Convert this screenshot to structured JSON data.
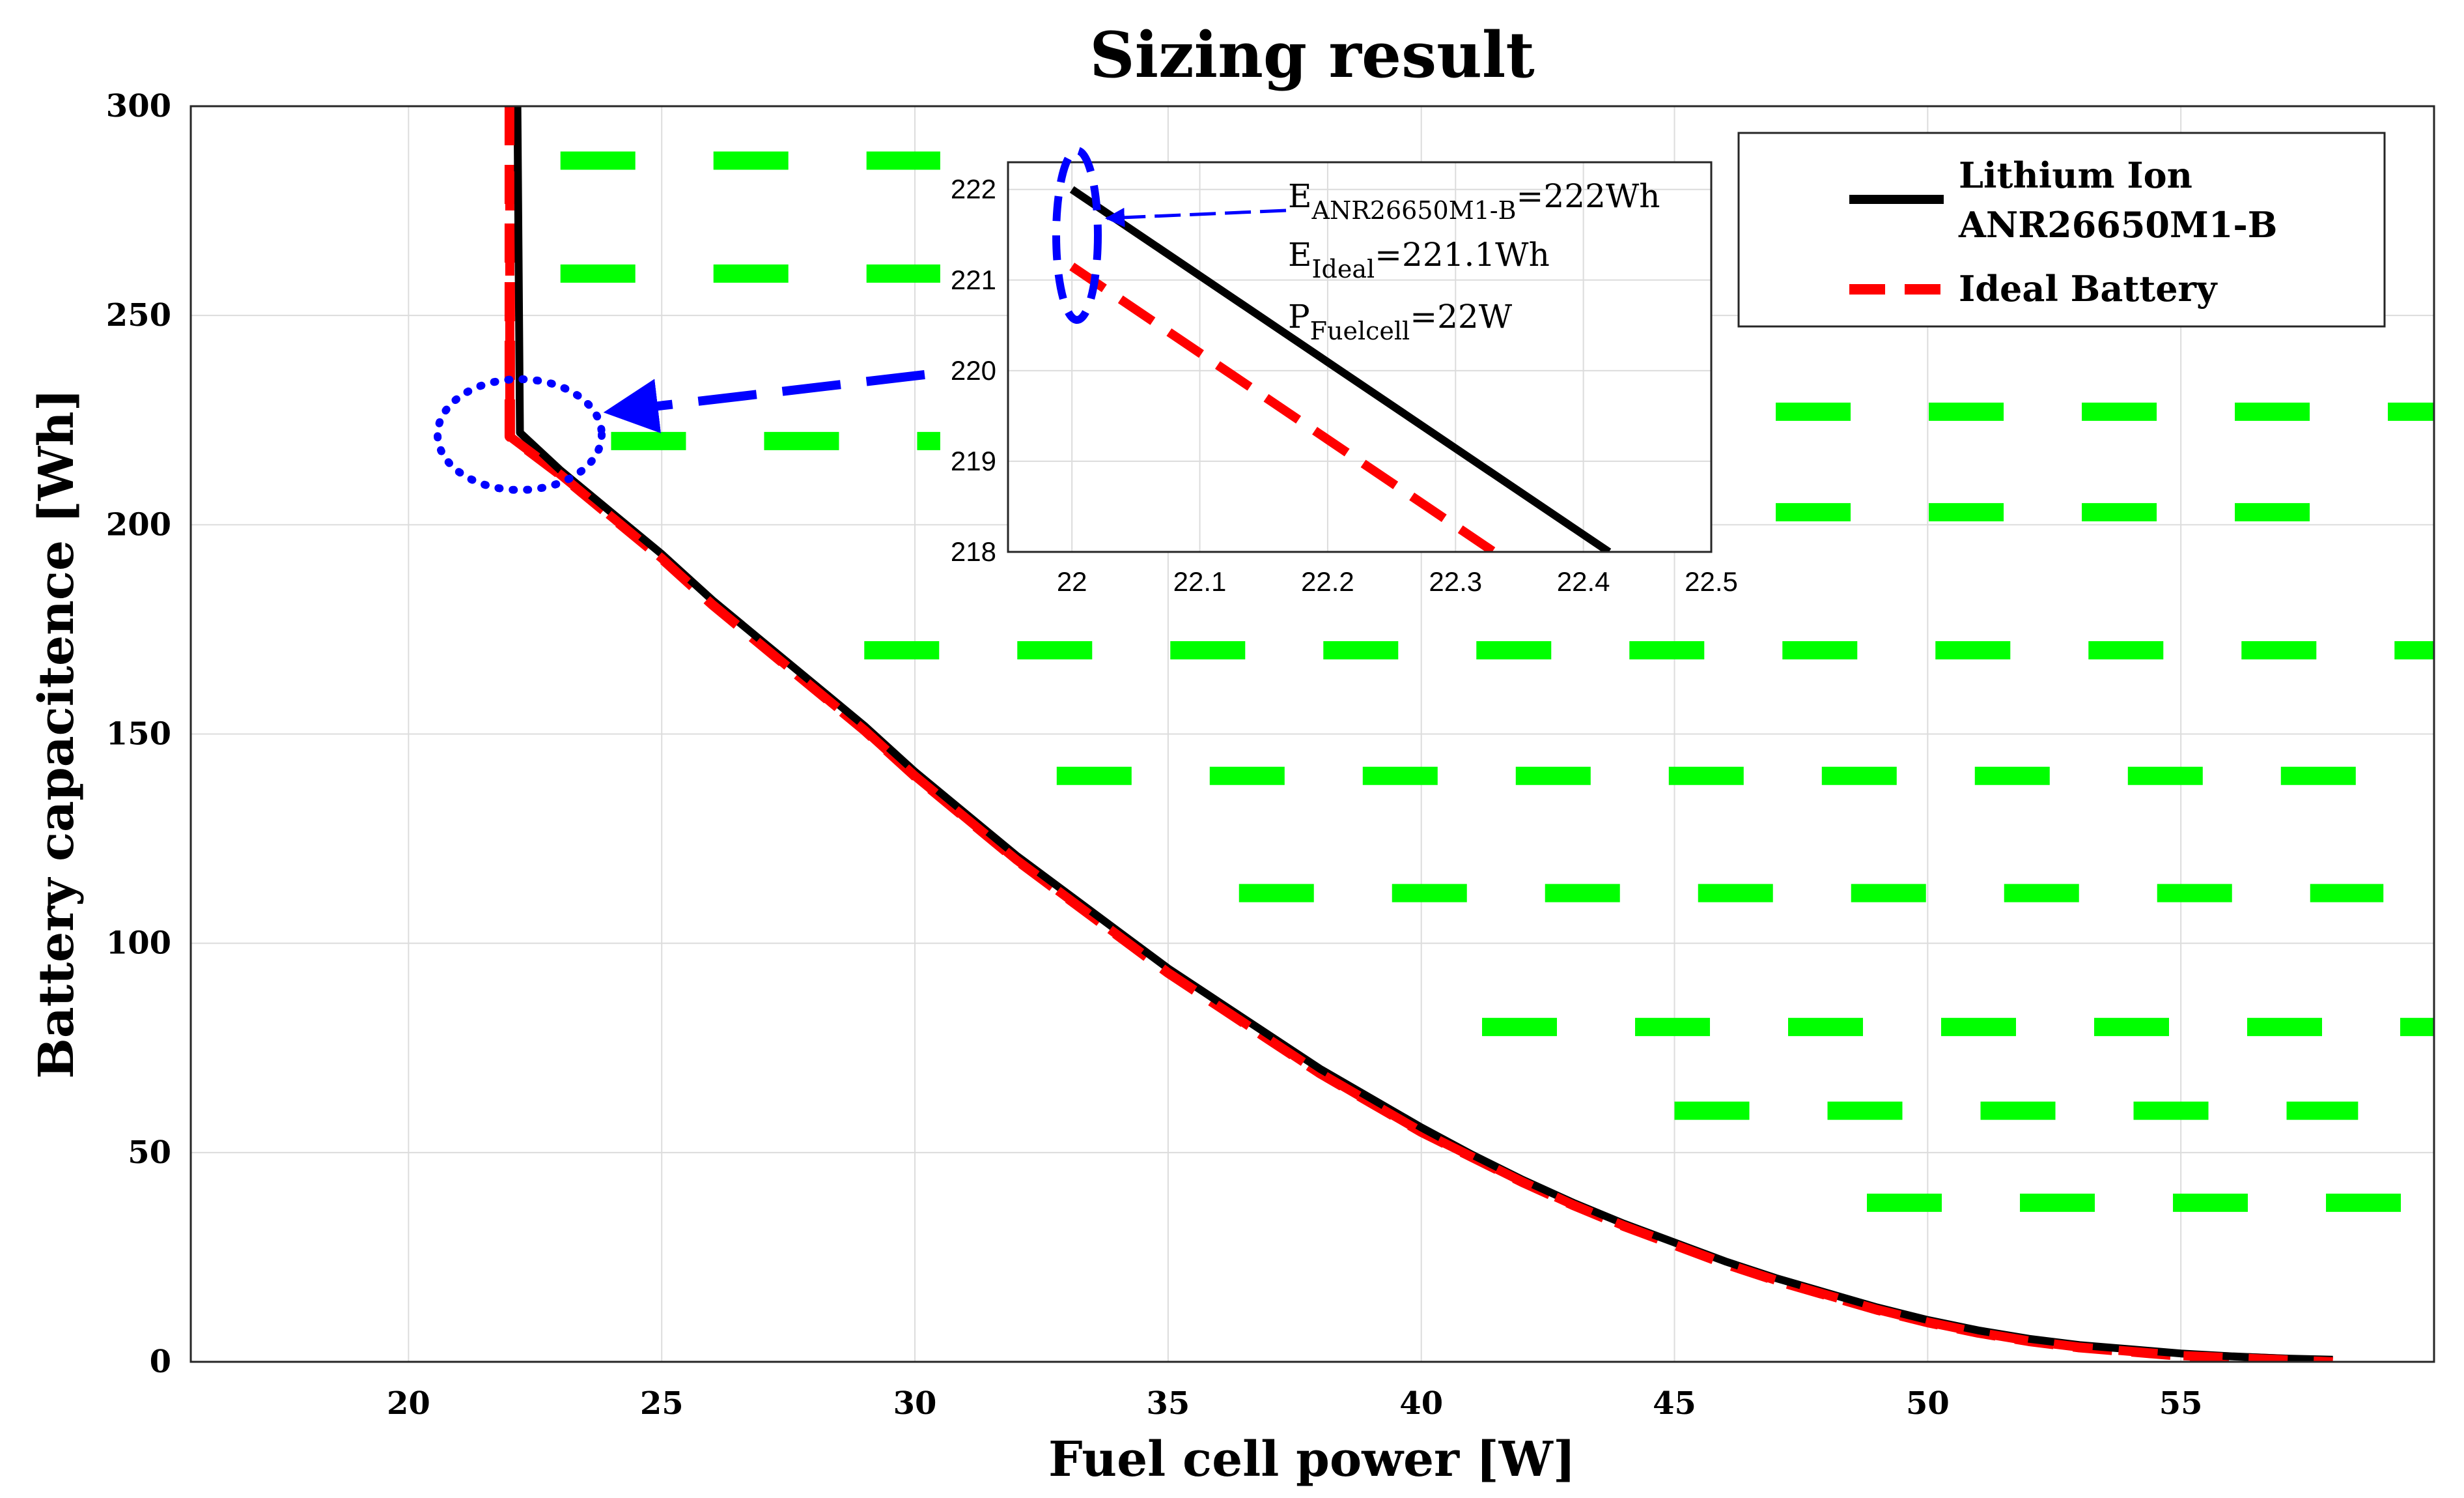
{
  "chart_data": {
    "type": "line",
    "title": "Sizing result",
    "xlabel": "Fuel cell power [W]",
    "ylabel": "Battery capacitence [Wh]",
    "xlim": [
      15.7,
      60
    ],
    "ylim": [
      0,
      300
    ],
    "xticks": [
      20,
      25,
      30,
      35,
      40,
      45,
      50,
      55
    ],
    "yticks": [
      0,
      50,
      100,
      150,
      200,
      250,
      300
    ],
    "grid": true,
    "legend_position": "top-right",
    "series": [
      {
        "name": "Lithium Ion ANR26650M1-B",
        "color": "#000000",
        "style": "solid",
        "x": [
          22.15,
          22.2,
          23,
          24,
          25,
          26,
          27,
          28,
          29,
          30,
          31,
          32,
          33,
          34,
          35,
          36,
          37,
          38,
          39,
          40,
          41,
          42,
          43,
          44,
          45,
          46,
          47,
          48,
          49,
          50,
          51,
          52,
          53,
          54,
          55,
          56,
          57,
          58
        ],
        "y": [
          300,
          222,
          213,
          203,
          193,
          182,
          172,
          162,
          152,
          141,
          131,
          121,
          112,
          103,
          94,
          86,
          78,
          70,
          63,
          56,
          49.5,
          43.5,
          38,
          33,
          28.5,
          24,
          20,
          16.5,
          13,
          10,
          7.5,
          5.5,
          4,
          3,
          2,
          1.3,
          0.8,
          0.5
        ]
      },
      {
        "name": "Ideal Battery",
        "color": "#ff0000",
        "style": "dashed",
        "x": [
          22,
          22,
          23,
          24,
          25,
          26,
          27,
          28,
          29,
          30,
          31,
          32,
          33,
          34,
          35,
          36,
          37,
          38,
          39,
          40,
          41,
          42,
          43,
          44,
          45,
          46,
          47,
          48,
          49,
          50,
          51,
          52,
          53,
          54,
          55,
          56,
          57,
          58
        ],
        "y": [
          300,
          221.1,
          212,
          202,
          192,
          181,
          171,
          161,
          151,
          140,
          130,
          120,
          111,
          102,
          93,
          85,
          77,
          69,
          62,
          55,
          49,
          43,
          37.5,
          32.5,
          28,
          23.5,
          19.5,
          16,
          12.5,
          9.5,
          7,
          5,
          3.5,
          2.5,
          1.5,
          1,
          0.5,
          0
        ]
      }
    ],
    "infeasible_hatch": {
      "color": "#00ff00",
      "rows": [
        {
          "y": 287,
          "x_start": 23.0,
          "x_end": 30.5
        },
        {
          "y": 260,
          "x_start": 23.0,
          "x_end": 30.5
        },
        {
          "y": 227,
          "x_start": 47.0,
          "x_end": 60
        },
        {
          "y": 220,
          "x_start": 24.0,
          "x_end": 30.5
        },
        {
          "y": 203,
          "x_start": 47.0,
          "x_end": 59
        },
        {
          "y": 170,
          "x_start": 29.0,
          "x_end": 60
        },
        {
          "y": 140,
          "x_start": 32.8,
          "x_end": 59
        },
        {
          "y": 112,
          "x_start": 36.4,
          "x_end": 59
        },
        {
          "y": 80,
          "x_start": 41.2,
          "x_end": 60
        },
        {
          "y": 60,
          "x_start": 45.0,
          "x_end": 58.5
        },
        {
          "y": 38,
          "x_start": 48.8,
          "x_end": 60
        }
      ]
    },
    "inset": {
      "xlim": [
        21.95,
        22.5
      ],
      "ylim": [
        218,
        222.3
      ],
      "xticks": [
        22,
        22.1,
        22.2,
        22.3,
        22.4,
        22.5
      ],
      "yticks": [
        218,
        219,
        220,
        221,
        222
      ],
      "series": [
        {
          "name": "Lithium Ion ANR26650M1-B",
          "x": [
            22,
            22.42
          ],
          "y": [
            222,
            218
          ]
        },
        {
          "name": "Ideal Battery",
          "x": [
            22,
            22.33
          ],
          "y": [
            221.15,
            218
          ]
        }
      ],
      "annotations": [
        {
          "base": "E",
          "sub": "ANR26650M1-B",
          "suffix": "=222Wh"
        },
        {
          "base": "E",
          "sub": "Ideal",
          "suffix": "=221.1Wh"
        },
        {
          "base": "P",
          "sub": "Fuelcell",
          "suffix": "=22W"
        }
      ]
    },
    "legend": [
      {
        "label_lines": [
          "Lithium Ion",
          "ANR26650M1-B"
        ],
        "series": 0
      },
      {
        "label_lines": [
          "Ideal Battery"
        ],
        "series": 1
      }
    ]
  }
}
